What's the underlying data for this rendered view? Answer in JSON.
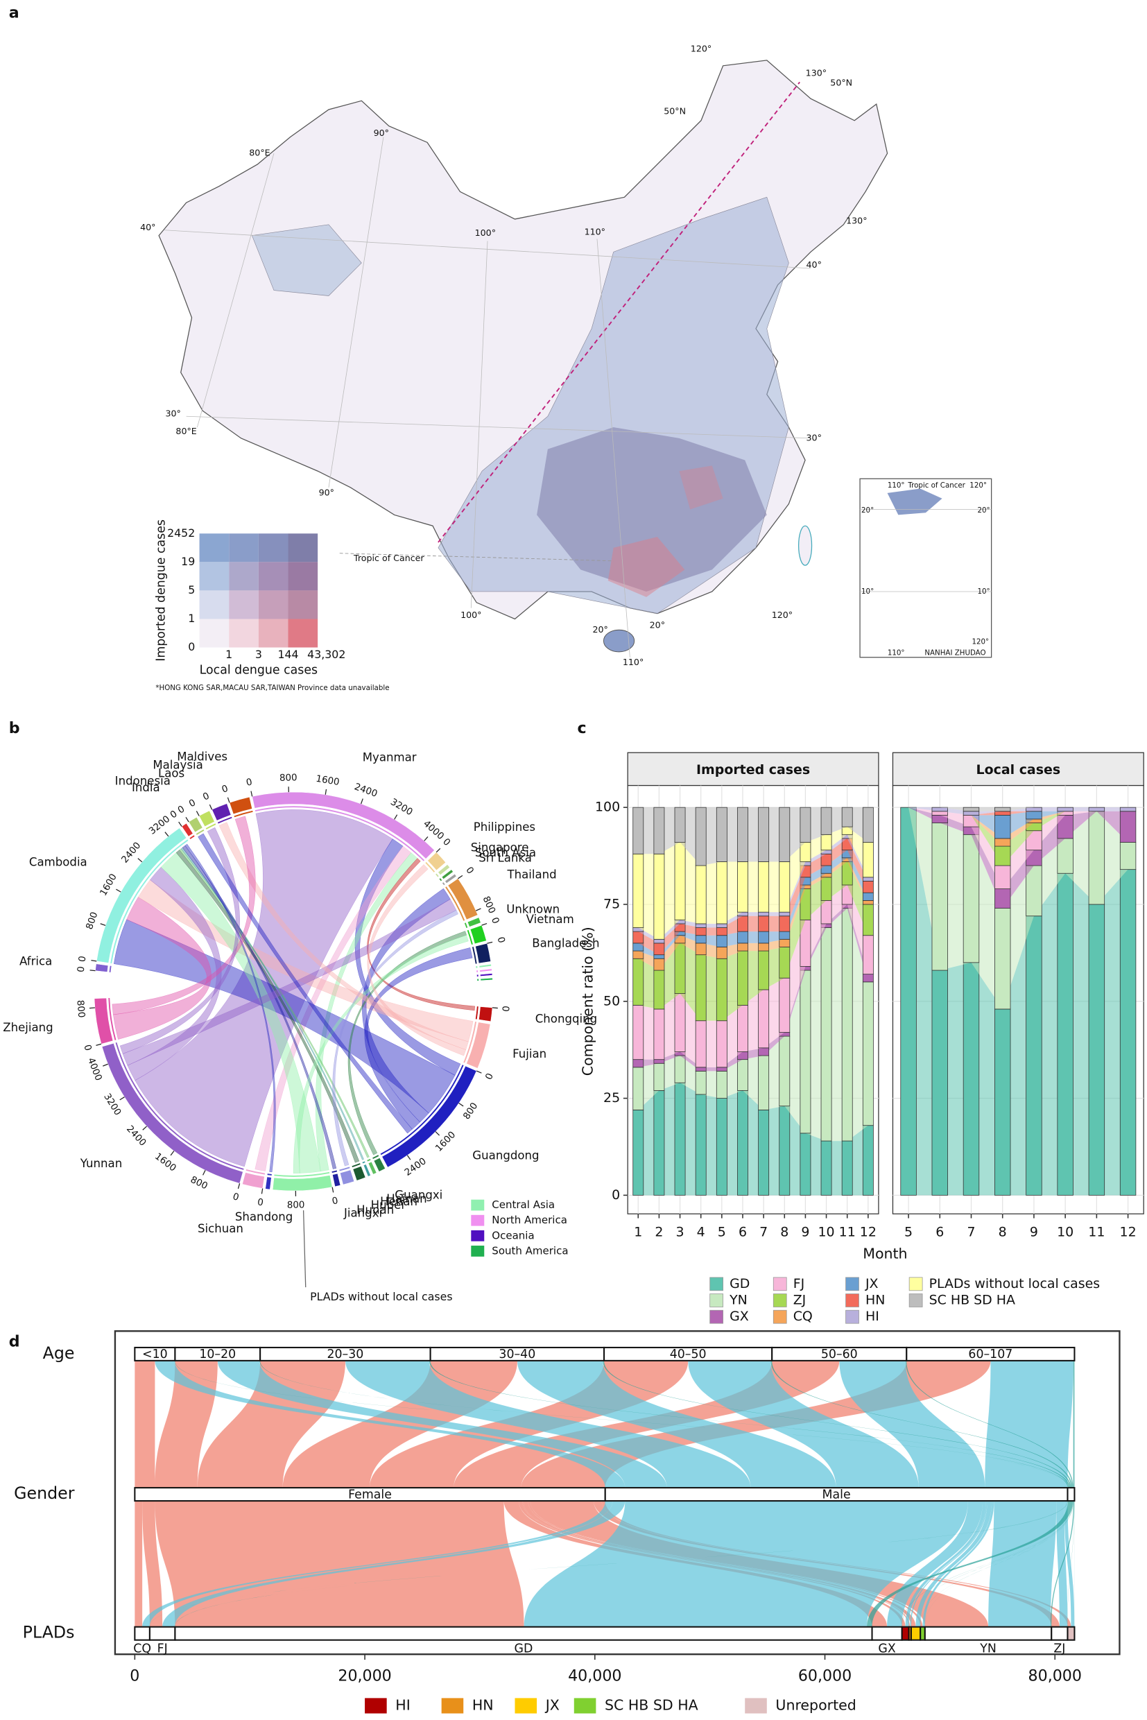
{
  "panel_labels": [
    "a",
    "b",
    "c",
    "d"
  ],
  "map": {
    "legend": {
      "y_title": "Imported dengue cases",
      "x_title": "Local dengue cases",
      "y_ticks": [
        "2452",
        "19",
        "5",
        "1",
        "0"
      ],
      "x_ticks": [
        "1",
        "3",
        "144",
        "43,302"
      ],
      "colors": [
        [
          "#8ba6d1",
          "#8a9dc9",
          "#8690bd",
          "#7f7ea9"
        ],
        [
          "#b2c4e2",
          "#ada8cb",
          "#a68fb7",
          "#9a7aa3"
        ],
        [
          "#d7dcee",
          "#d1bcd6",
          "#c69fba",
          "#b88aa5"
        ],
        [
          "#f3eef5",
          "#f2d6df",
          "#e8b2bd",
          "#e07a86"
        ]
      ]
    },
    "note": "*HONG KONG SAR,MACAU SAR,TAIWAN Province data unavailable",
    "labels": [
      "120°",
      "130°",
      "50°N",
      "50°N",
      "90°",
      "80°E",
      "40°",
      "100°",
      "110°",
      "130°",
      "40°",
      "30°",
      "80°E",
      "30°",
      "90°",
      "Tropic of Cancer",
      "100°",
      "120°",
      "20°",
      "20°",
      "110°"
    ],
    "inset_labels": [
      "110°",
      "Tropic of Cancer",
      "120°",
      "20°",
      "20°",
      "10°",
      "10°",
      "120°",
      "110°",
      "NANHAI ZHUDAO"
    ]
  },
  "chart_data": [
    {
      "type": "chord",
      "segments": [
        {
          "label": "Myanmar",
          "value": 4300,
          "color": "#dc8ce8",
          "ticks": [
            0,
            800,
            1600,
            2400,
            3200,
            4000
          ]
        },
        {
          "label": "Philippines",
          "value": 300,
          "color": "#f0d090",
          "ticks": [
            0
          ]
        },
        {
          "label": "Singapore",
          "value": 80,
          "color": "#c8e0a0",
          "ticks": []
        },
        {
          "label": "South Asia",
          "value": 60,
          "color": "#40a040",
          "ticks": []
        },
        {
          "label": "Sri Lanka",
          "value": 60,
          "color": "#a0a0a0",
          "ticks": []
        },
        {
          "label": "Thailand",
          "value": 900,
          "color": "#e09040",
          "ticks": [
            0,
            800
          ]
        },
        {
          "label": "Unknown",
          "value": 120,
          "color": "#40c040",
          "ticks": []
        },
        {
          "label": "Vietnam",
          "value": 350,
          "color": "#20d020",
          "ticks": [
            0
          ]
        },
        {
          "label": "Bangladesh",
          "value": 400,
          "color": "#102060",
          "ticks": [
            0
          ]
        },
        {
          "label": "Central Asia",
          "value": 40,
          "color": "#90f0b0",
          "ticks": [],
          "in_legend": true
        },
        {
          "label": "North America",
          "value": 40,
          "color": "#f090f0",
          "ticks": [],
          "in_legend": true
        },
        {
          "label": "Oceania",
          "value": 40,
          "color": "#5010c0",
          "ticks": [],
          "in_legend": true
        },
        {
          "label": "South America",
          "value": 40,
          "color": "#20b050",
          "ticks": [],
          "in_legend": true
        },
        {
          "label": "Chongqing",
          "value": 300,
          "color": "#c01010",
          "ticks": [
            0
          ]
        },
        {
          "label": "Fujian",
          "value": 1000,
          "color": "#f8b0b0",
          "ticks": []
        },
        {
          "label": "Guangdong",
          "value": 2900,
          "color": "#2020c0",
          "ticks": [
            0,
            800,
            1600,
            2400
          ]
        },
        {
          "label": "Guangxi",
          "value": 150,
          "color": "#2a8040",
          "ticks": []
        },
        {
          "label": "Hainan",
          "value": 80,
          "color": "#60c060",
          "ticks": []
        },
        {
          "label": "Henan",
          "value": 60,
          "color": "#40a0a0",
          "ticks": []
        },
        {
          "label": "Hubei",
          "value": 200,
          "color": "#1c5a30",
          "ticks": []
        },
        {
          "label": "Hunan",
          "value": 250,
          "color": "#9090e0",
          "ticks": []
        },
        {
          "label": "Jiangxi",
          "value": 120,
          "color": "#2020a0",
          "ticks": []
        },
        {
          "label": "PLADs without local cases",
          "value": 1300,
          "color": "#90f0a8",
          "ticks": [
            0,
            800
          ],
          "callout": true
        },
        {
          "label": "Shandong",
          "value": 100,
          "color": "#3030c0",
          "ticks": []
        },
        {
          "label": "Sichuan",
          "value": 450,
          "color": "#f0a0d0",
          "ticks": [
            0
          ]
        },
        {
          "label": "Yunnan",
          "value": 4400,
          "color": "#9060c8",
          "ticks": [
            0,
            800,
            1600,
            2400,
            3200,
            4000
          ]
        },
        {
          "label": "Zhejiang",
          "value": 1000,
          "color": "#e050a8",
          "ticks": [
            0,
            800
          ]
        },
        {
          "label": "Africa",
          "value": 150,
          "color": "#8060d0",
          "ticks": [
            0
          ]
        },
        {
          "label": "Cambodia",
          "value": 3500,
          "color": "#90f0e0",
          "ticks": [
            0,
            800,
            1600,
            2400,
            3200
          ]
        },
        {
          "label": "India",
          "value": 120,
          "color": "#e03030",
          "ticks": [
            0
          ]
        },
        {
          "label": "Indonesia",
          "value": 200,
          "color": "#b0d070",
          "ticks": [
            0
          ]
        },
        {
          "label": "Laos",
          "value": 250,
          "color": "#c0e060",
          "ticks": [
            0
          ]
        },
        {
          "label": "Malaysia",
          "value": 350,
          "color": "#6020b0",
          "ticks": [
            0
          ]
        },
        {
          "label": "Maldives",
          "value": 450,
          "color": "#d05010",
          "ticks": [
            0
          ]
        }
      ],
      "flows": [
        {
          "from": "Myanmar",
          "to": "Yunnan",
          "value": 3400
        },
        {
          "from": "Myanmar",
          "to": "Guangdong",
          "value": 300
        },
        {
          "from": "Myanmar",
          "to": "Sichuan",
          "value": 250
        },
        {
          "from": "Myanmar",
          "to": "PLADs without local cases",
          "value": 200
        },
        {
          "from": "Myanmar",
          "to": "Chongqing",
          "value": 100
        },
        {
          "from": "Cambodia",
          "to": "Guangdong",
          "value": 1100
        },
        {
          "from": "Cambodia",
          "to": "Zhejiang",
          "value": 600
        },
        {
          "from": "Cambodia",
          "to": "Fujian",
          "value": 500
        },
        {
          "from": "Cambodia",
          "to": "Yunnan",
          "value": 400
        },
        {
          "from": "Cambodia",
          "to": "PLADs without local cases",
          "value": 500
        },
        {
          "from": "Cambodia",
          "to": "Hubei",
          "value": 100
        },
        {
          "from": "Cambodia",
          "to": "Hainan",
          "value": 50
        },
        {
          "from": "Cambodia",
          "to": "Henan",
          "value": 40
        },
        {
          "from": "Cambodia",
          "to": "Jiangxi",
          "value": 80
        },
        {
          "from": "Cambodia",
          "to": "Shandong",
          "value": 60
        },
        {
          "from": "Thailand",
          "to": "Guangdong",
          "value": 300
        },
        {
          "from": "Thailand",
          "to": "Yunnan",
          "value": 300
        },
        {
          "from": "Thailand",
          "to": "Hunan",
          "value": 100
        },
        {
          "from": "Vietnam",
          "to": "Guangxi",
          "value": 100
        },
        {
          "from": "Vietnam",
          "to": "PLADs without local cases",
          "value": 150
        },
        {
          "from": "Bangladesh",
          "to": "Guangdong",
          "value": 250
        },
        {
          "from": "Malaysia",
          "to": "Fujian",
          "value": 200
        },
        {
          "from": "Maldives",
          "to": "Zhejiang",
          "value": 250
        },
        {
          "from": "Philippines",
          "to": "Fujian",
          "value": 150
        },
        {
          "from": "Laos",
          "to": "Yunnan",
          "value": 200
        },
        {
          "from": "Indonesia",
          "to": "Guangdong",
          "value": 150
        }
      ]
    },
    {
      "type": "stacked_bar",
      "xlabel": "Month",
      "ylabel": "Component ratio (%)",
      "ylim": [
        0,
        100
      ],
      "yticks": [
        0,
        25,
        50,
        75,
        100
      ],
      "grid": true,
      "series": [
        {
          "name": "GD",
          "color": "#5fc4b0"
        },
        {
          "name": "YN",
          "color": "#c7e9c0"
        },
        {
          "name": "GX",
          "color": "#b366b3"
        },
        {
          "name": "FJ",
          "color": "#f7b6d9"
        },
        {
          "name": "ZJ",
          "color": "#a6d854"
        },
        {
          "name": "CQ",
          "color": "#f5a55a"
        },
        {
          "name": "JX",
          "color": "#6a9fd1"
        },
        {
          "name": "HN",
          "color": "#f26b5b"
        },
        {
          "name": "HI",
          "color": "#b8b0dc"
        },
        {
          "name": "PLADs without local cases",
          "color": "#ffff9f"
        },
        {
          "name": "SC  HB  SD  HA",
          "color": "#bdbdbd"
        }
      ],
      "facets": [
        {
          "title": "Imported cases",
          "categories": [
            1,
            2,
            3,
            4,
            5,
            6,
            7,
            8,
            9,
            10,
            11,
            12
          ],
          "values": [
            [
              22,
              27,
              29,
              26,
              25,
              27,
              22,
              23,
              16,
              14,
              14,
              18
            ],
            [
              11,
              7,
              7,
              6,
              7,
              8,
              14,
              18,
              42,
              55,
              60,
              37
            ],
            [
              2,
              1,
              1,
              1,
              1,
              2,
              2,
              1,
              1,
              1,
              1,
              2
            ],
            [
              14,
              13,
              15,
              12,
              12,
              12,
              15,
              14,
              12,
              6,
              5,
              10
            ],
            [
              12,
              10,
              13,
              17,
              16,
              14,
              10,
              8,
              8,
              6,
              6,
              8
            ],
            [
              2,
              3,
              2,
              3,
              3,
              2,
              2,
              2,
              1,
              1,
              1,
              1
            ],
            [
              2,
              1,
              1,
              2,
              3,
              3,
              3,
              2,
              2,
              2,
              2,
              2
            ],
            [
              3,
              3,
              2,
              2,
              2,
              4,
              4,
              4,
              3,
              3,
              3,
              3
            ],
            [
              1,
              1,
              1,
              1,
              1,
              1,
              1,
              1,
              1,
              1,
              1,
              1
            ],
            [
              19,
              22,
              20,
              15,
              16,
              13,
              13,
              13,
              5,
              4,
              2,
              9
            ],
            [
              12,
              12,
              9,
              15,
              14,
              14,
              14,
              14,
              9,
              7,
              5,
              9
            ]
          ]
        },
        {
          "title": "Local cases",
          "categories": [
            5,
            6,
            7,
            8,
            9,
            10,
            11,
            12
          ],
          "values": [
            [
              100,
              58,
              60,
              48,
              72,
              83,
              75,
              84
            ],
            [
              0,
              38,
              33,
              26,
              13,
              9,
              24,
              7
            ],
            [
              0,
              2,
              2,
              5,
              4,
              6,
              0,
              8
            ],
            [
              0,
              1,
              3,
              6,
              5,
              1,
              0,
              0
            ],
            [
              0,
              0,
              0,
              5,
              2,
              0,
              0,
              0
            ],
            [
              0,
              0,
              0,
              2,
              1,
              0,
              0,
              0
            ],
            [
              0,
              0,
              0,
              6,
              2,
              0,
              0,
              0
            ],
            [
              0,
              0,
              0,
              1,
              0,
              0,
              0,
              0
            ],
            [
              0,
              1,
              1,
              0,
              1,
              1,
              1,
              1
            ],
            [
              0,
              0,
              0,
              0,
              0,
              0,
              0,
              0
            ],
            [
              0,
              0,
              1,
              1,
              0,
              0,
              0,
              0
            ]
          ]
        }
      ]
    },
    {
      "type": "alluvial",
      "xlim": [
        -1714,
        85619
      ],
      "xticks": [
        0,
        {
          "value": 20000,
          "label": "20,000"
        },
        {
          "value": 40000,
          "label": "40,000"
        },
        {
          "value": 60000,
          "label": "60,000"
        },
        {
          "value": 80000,
          "label": "80,000"
        }
      ],
      "rows": [
        {
          "label": "Age",
          "categories": [
            "<10",
            "10–20",
            "20–30",
            "30–40",
            "40–50",
            "50–60",
            "60–107"
          ],
          "values": [
            3500,
            7400,
            14800,
            15100,
            14600,
            11700,
            14600
          ]
        },
        {
          "label": "Gender",
          "categories": [
            "Female",
            "Male",
            null
          ],
          "values": [
            40900,
            40200,
            600
          ]
        },
        {
          "label": "PLADs",
          "categories": [
            "CQ",
            "FJ",
            "GD",
            "GX",
            null,
            null,
            null,
            null,
            "YN",
            "ZJ",
            null
          ],
          "values": [
            1300,
            2200,
            60600,
            2600,
            600,
            200,
            800,
            400,
            11000,
            1400,
            600
          ],
          "colors": [
            "#ffffff",
            "#ffffff",
            "#ffffff",
            "#ffffff",
            "#b00000",
            "#e8901a",
            "#ffcc00",
            "#80d030",
            "#ffffff",
            "#ffffff",
            "#e0c0c0"
          ]
        }
      ],
      "flow_colors": [
        "#f07a68",
        "#5cc3da",
        "#2aa198"
      ],
      "legend": [
        {
          "name": "HI",
          "color": "#b00000"
        },
        {
          "name": "HN",
          "color": "#e8901a"
        },
        {
          "name": "JX",
          "color": "#ffcc00"
        },
        {
          "name": "SC  HB  SD  HA",
          "color": "#80d030"
        },
        {
          "name": "Unreported",
          "color": "#e0c0c0"
        }
      ]
    }
  ]
}
